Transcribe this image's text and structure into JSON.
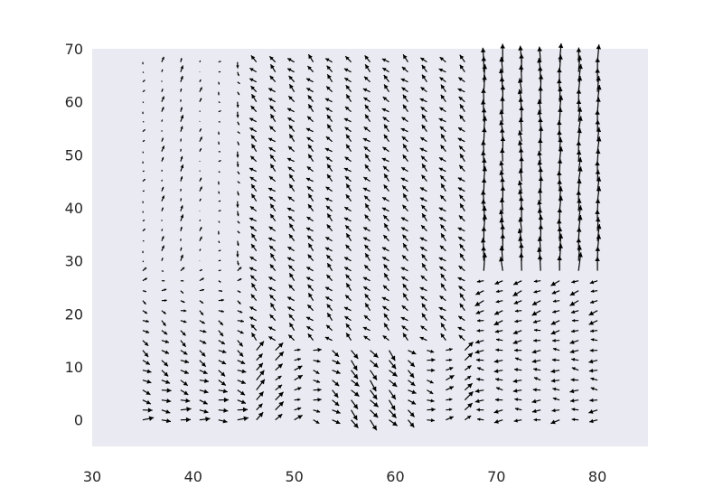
{
  "chart_data": {
    "type": "quiver",
    "title": "",
    "xlabel": "",
    "ylabel": "",
    "xlim": [
      30,
      85
    ],
    "ylim": [
      -5,
      70
    ],
    "x_ticks": [
      "30",
      "40",
      "50",
      "60",
      "70",
      "80"
    ],
    "y_ticks": [
      "0",
      "10",
      "20",
      "30",
      "40",
      "50",
      "60",
      "70"
    ],
    "grid": false,
    "plot_background": "#eaeaf2",
    "arrow_color": "#000000",
    "grid_points": {
      "x_start": 35,
      "x_end": 80,
      "x_step": 1.875,
      "y_start": 0,
      "y_end": 67.5,
      "y_step": 1.875
    },
    "field_regions": [
      {
        "region": "x 35-44, y 5-30",
        "direction": "right / down-right",
        "magnitude": "medium"
      },
      {
        "region": "x 35-44, y 30-55",
        "direction": "vertical, weak",
        "magnitude": "low"
      },
      {
        "region": "x 45-66, y 0-15",
        "direction": "up-right",
        "magnitude": "medium"
      },
      {
        "region": "x 45-66, y 15-60",
        "direction": "up-left",
        "magnitude": "medium"
      },
      {
        "region": "x 68-80, y 30-68",
        "direction": "up / up-right",
        "magnitude": "high"
      },
      {
        "region": "x 68-80, y 0-25",
        "direction": "left / down-left",
        "magnitude": "medium"
      }
    ]
  }
}
